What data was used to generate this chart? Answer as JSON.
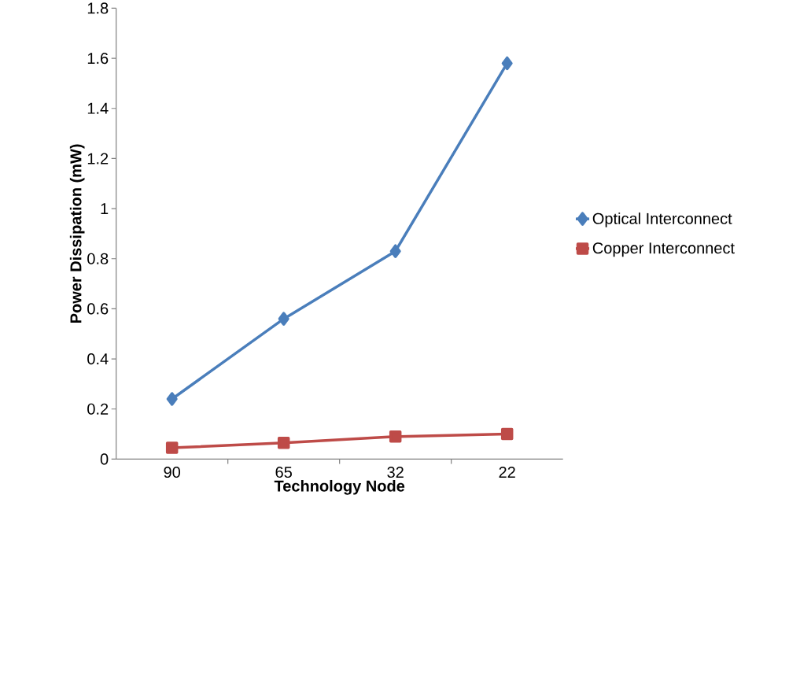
{
  "chart_data": {
    "type": "line",
    "xlabel": "Technology Node",
    "ylabel": "Power Dissipation (mW)",
    "categories": [
      "90",
      "65",
      "32",
      "22"
    ],
    "series": [
      {
        "name": "Optical Interconnect",
        "color": "#4a7ebb",
        "marker": "diamond",
        "values": [
          0.24,
          0.56,
          0.83,
          1.58
        ]
      },
      {
        "name": "Copper Interconnect",
        "color": "#be4b48",
        "marker": "square",
        "values": [
          0.045,
          0.065,
          0.09,
          0.1
        ]
      }
    ],
    "ylim": [
      0,
      1.8
    ],
    "yticks": [
      0,
      0.2,
      0.4,
      0.6,
      0.8,
      1,
      1.2,
      1.4,
      1.6,
      1.8
    ],
    "legend": "right",
    "grid": false
  }
}
